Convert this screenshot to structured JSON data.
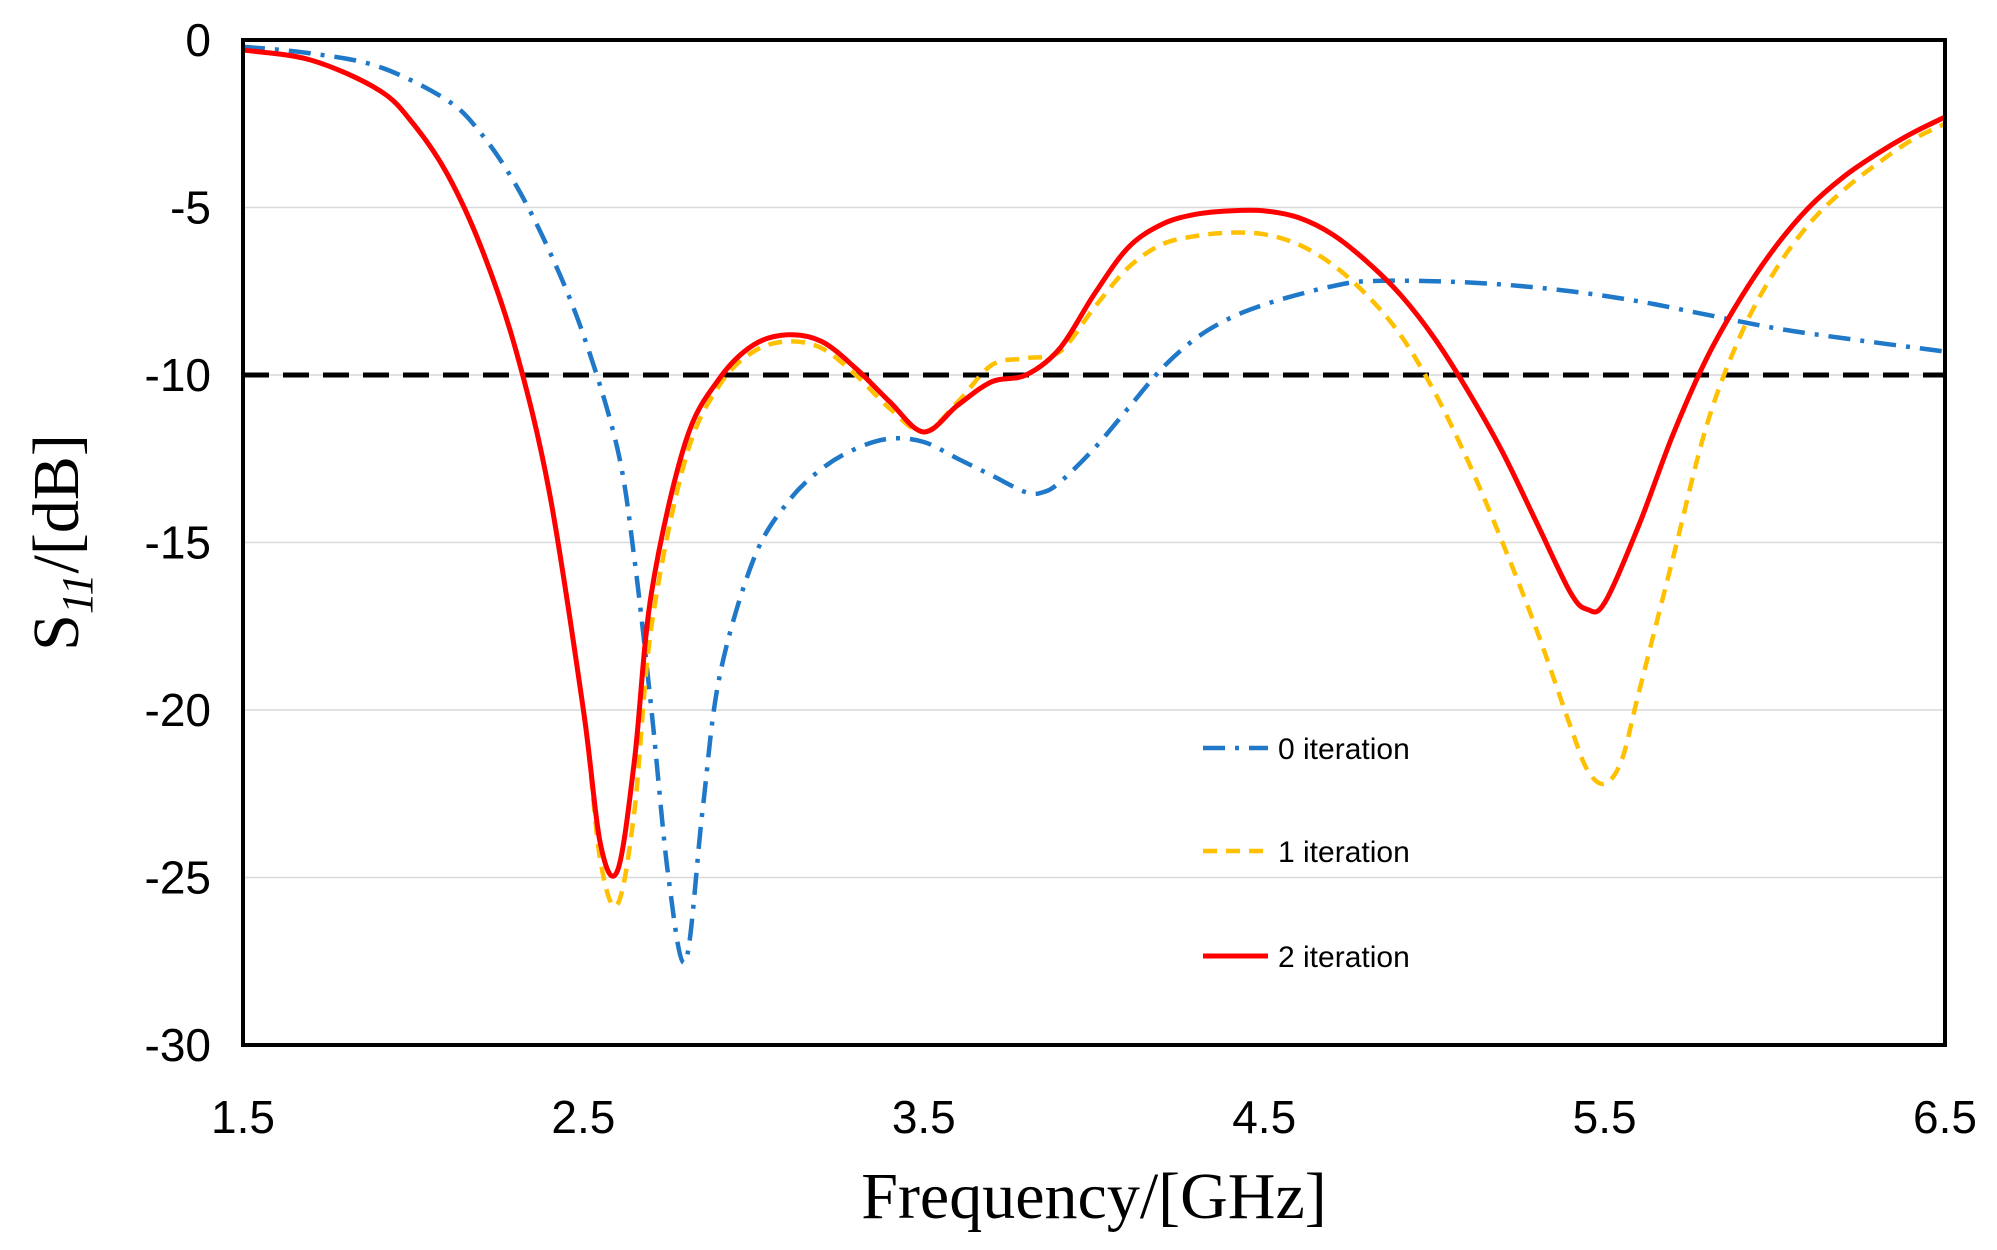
{
  "chart_data": {
    "type": "line",
    "title": "",
    "xlabel": "Frequency/[GHz]",
    "ylabel": {
      "prefix": "S",
      "subscript": "11",
      "suffix": "/[dB]"
    },
    "xlim": [
      1.5,
      6.5
    ],
    "ylim": [
      -30,
      0
    ],
    "xticks": [
      "1.5",
      "2.5",
      "3.5",
      "4.5",
      "5.5",
      "6.5"
    ],
    "yticks": [
      "0",
      "-5",
      "-10",
      "-15",
      "-20",
      "-25",
      "-30"
    ],
    "grid": "horizontal",
    "reference_line": {
      "y": -10,
      "color": "#000000",
      "style": "dashed"
    },
    "legend_position": "lower-middle-right",
    "series": [
      {
        "name": "0 iteration",
        "color": "#1f78c8",
        "style": "dash-dot",
        "x": [
          1.5,
          1.7,
          1.9,
          2.1,
          2.2,
          2.3,
          2.4,
          2.5,
          2.6,
          2.65,
          2.7,
          2.75,
          2.8,
          2.85,
          2.9,
          3.0,
          3.1,
          3.2,
          3.3,
          3.4,
          3.5,
          3.6,
          3.7,
          3.8,
          3.85,
          3.9,
          4.0,
          4.1,
          4.2,
          4.3,
          4.4,
          4.5,
          4.6,
          4.7,
          4.8,
          5.0,
          5.2,
          5.4,
          5.6,
          5.8,
          6.0,
          6.2,
          6.5
        ],
        "y": [
          -0.2,
          -0.4,
          -0.8,
          -1.8,
          -2.8,
          -4.3,
          -6.3,
          -8.8,
          -12.2,
          -15.5,
          -20.0,
          -25.0,
          -27.5,
          -23.0,
          -19.0,
          -15.5,
          -13.8,
          -12.8,
          -12.2,
          -11.9,
          -12.0,
          -12.5,
          -13.0,
          -13.5,
          -13.5,
          -13.2,
          -12.2,
          -11.0,
          -9.8,
          -8.9,
          -8.3,
          -7.9,
          -7.6,
          -7.35,
          -7.2,
          -7.2,
          -7.3,
          -7.5,
          -7.8,
          -8.2,
          -8.6,
          -8.9,
          -9.3
        ]
      },
      {
        "name": "1 iteration",
        "color": "#ffc000",
        "style": "dashed",
        "x": [
          1.5,
          1.7,
          1.9,
          2.0,
          2.1,
          2.2,
          2.3,
          2.4,
          2.5,
          2.55,
          2.6,
          2.65,
          2.7,
          2.8,
          2.9,
          3.0,
          3.1,
          3.2,
          3.3,
          3.4,
          3.5,
          3.6,
          3.7,
          3.8,
          3.9,
          4.0,
          4.1,
          4.2,
          4.3,
          4.4,
          4.5,
          4.6,
          4.7,
          4.8,
          4.9,
          5.0,
          5.1,
          5.2,
          5.3,
          5.4,
          5.45,
          5.5,
          5.55,
          5.6,
          5.7,
          5.8,
          5.9,
          6.0,
          6.1,
          6.2,
          6.3,
          6.4,
          6.5
        ],
        "y": [
          -0.3,
          -0.6,
          -1.5,
          -2.5,
          -4.0,
          -6.2,
          -9.2,
          -13.5,
          -20.0,
          -24.5,
          -25.8,
          -23.0,
          -17.5,
          -12.5,
          -10.3,
          -9.3,
          -9.0,
          -9.2,
          -10.0,
          -11.0,
          -11.7,
          -10.8,
          -9.7,
          -9.5,
          -9.3,
          -8.0,
          -6.8,
          -6.1,
          -5.85,
          -5.75,
          -5.8,
          -6.1,
          -6.7,
          -7.6,
          -8.8,
          -10.5,
          -12.6,
          -15.0,
          -17.6,
          -20.5,
          -21.8,
          -22.2,
          -21.5,
          -19.5,
          -15.5,
          -11.5,
          -8.8,
          -6.9,
          -5.5,
          -4.5,
          -3.7,
          -3.0,
          -2.5
        ]
      },
      {
        "name": "2 iteration",
        "color": "#ff0000",
        "style": "solid",
        "x": [
          1.5,
          1.7,
          1.9,
          2.0,
          2.1,
          2.2,
          2.3,
          2.4,
          2.5,
          2.55,
          2.6,
          2.65,
          2.7,
          2.8,
          2.9,
          3.0,
          3.1,
          3.2,
          3.3,
          3.4,
          3.5,
          3.6,
          3.7,
          3.8,
          3.9,
          4.0,
          4.1,
          4.2,
          4.3,
          4.4,
          4.5,
          4.6,
          4.7,
          4.8,
          4.9,
          5.0,
          5.1,
          5.2,
          5.3,
          5.4,
          5.45,
          5.5,
          5.6,
          5.7,
          5.8,
          5.9,
          6.0,
          6.1,
          6.2,
          6.3,
          6.4,
          6.5
        ],
        "y": [
          -0.3,
          -0.6,
          -1.5,
          -2.5,
          -4.0,
          -6.2,
          -9.2,
          -13.5,
          -20.0,
          -24.0,
          -24.8,
          -21.5,
          -16.5,
          -12.0,
          -10.1,
          -9.1,
          -8.8,
          -9.0,
          -9.8,
          -10.8,
          -11.7,
          -10.9,
          -10.2,
          -10.0,
          -9.2,
          -7.6,
          -6.2,
          -5.5,
          -5.2,
          -5.1,
          -5.1,
          -5.3,
          -5.8,
          -6.6,
          -7.6,
          -8.9,
          -10.5,
          -12.3,
          -14.4,
          -16.5,
          -17.0,
          -16.8,
          -14.5,
          -11.8,
          -9.5,
          -7.7,
          -6.2,
          -5.0,
          -4.1,
          -3.4,
          -2.8,
          -2.3
        ]
      }
    ]
  }
}
